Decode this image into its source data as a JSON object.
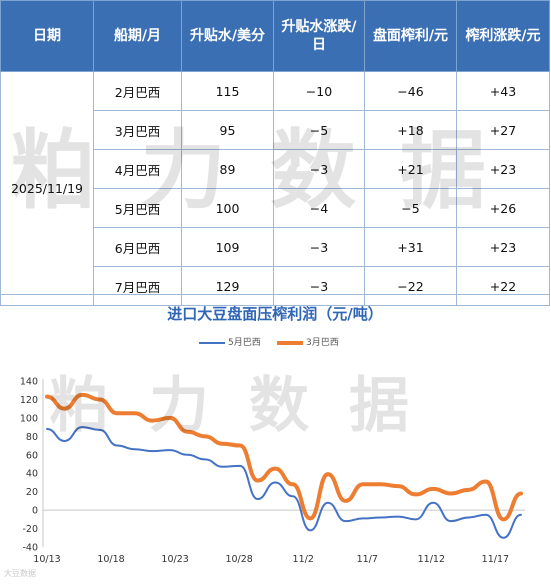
{
  "table": {
    "headers": [
      "日期",
      "船期/月",
      "升贴水/美分",
      "升贴水涨跌/日",
      "盘面榨利/元",
      "榨利涨跌/元"
    ],
    "date": "2025/11/19",
    "rows": [
      {
        "ship": "2月巴西",
        "premium": "115",
        "premium_chg": "−10",
        "margin": "−46",
        "margin_chg": "+43"
      },
      {
        "ship": "3月巴西",
        "premium": "95",
        "premium_chg": "−5",
        "margin": "+18",
        "margin_chg": "+27"
      },
      {
        "ship": "4月巴西",
        "premium": "89",
        "premium_chg": "−3",
        "margin": "+21",
        "margin_chg": "+23"
      },
      {
        "ship": "5月巴西",
        "premium": "100",
        "premium_chg": "−4",
        "margin": "−5",
        "margin_chg": "+26"
      },
      {
        "ship": "6月巴西",
        "premium": "109",
        "premium_chg": "−3",
        "margin": "+31",
        "margin_chg": "+23"
      },
      {
        "ship": "7月巴西",
        "premium": "129",
        "premium_chg": "−3",
        "margin": "−22",
        "margin_chg": "+22"
      }
    ]
  },
  "watermark": "粕力数据",
  "corner_logo": "大豆数据",
  "colors": {
    "header_bg": "#3a70b3",
    "negative": "#e02020",
    "series1": "#4472c4",
    "series2": "#ed7d31",
    "title": "#2f66b5"
  },
  "chart_data": {
    "type": "line",
    "title": "进口大豆盘面压榨利润（元/吨）",
    "xlabel": "",
    "ylabel": "",
    "ylim": [
      -40,
      140
    ],
    "yticks": [
      -40,
      -20,
      0,
      20,
      40,
      60,
      80,
      100,
      120,
      140
    ],
    "xtick_labels": [
      "10/13",
      "10/18",
      "10/23",
      "10/28",
      "11/2",
      "11/7",
      "11/12",
      "11/17"
    ],
    "x": [
      "10/13",
      "10/14",
      "10/15",
      "10/16",
      "10/17",
      "10/20",
      "10/21",
      "10/22",
      "10/23",
      "10/24",
      "10/27",
      "10/28",
      "10/29",
      "10/30",
      "10/31",
      "11/3",
      "11/4",
      "11/5",
      "11/6",
      "11/7",
      "11/10",
      "11/11",
      "11/12",
      "11/13",
      "11/14",
      "11/17",
      "11/18",
      "11/19"
    ],
    "legend_position": "top",
    "grid": false,
    "series": [
      {
        "name": "5月巴西",
        "color": "#4472c4",
        "values": [
          88,
          75,
          90,
          87,
          70,
          66,
          64,
          65,
          60,
          55,
          47,
          48,
          12,
          30,
          15,
          -22,
          8,
          -12,
          -9,
          -8,
          -7,
          -10,
          8,
          -12,
          -8,
          -5,
          -30,
          -5
        ]
      },
      {
        "name": "3月巴西",
        "color": "#ed7d31",
        "values": [
          123,
          110,
          125,
          120,
          105,
          105,
          97,
          100,
          85,
          80,
          72,
          70,
          32,
          45,
          28,
          -9,
          39,
          10,
          28,
          28,
          26,
          17,
          23,
          18,
          22,
          31,
          -10,
          18
        ]
      }
    ]
  }
}
